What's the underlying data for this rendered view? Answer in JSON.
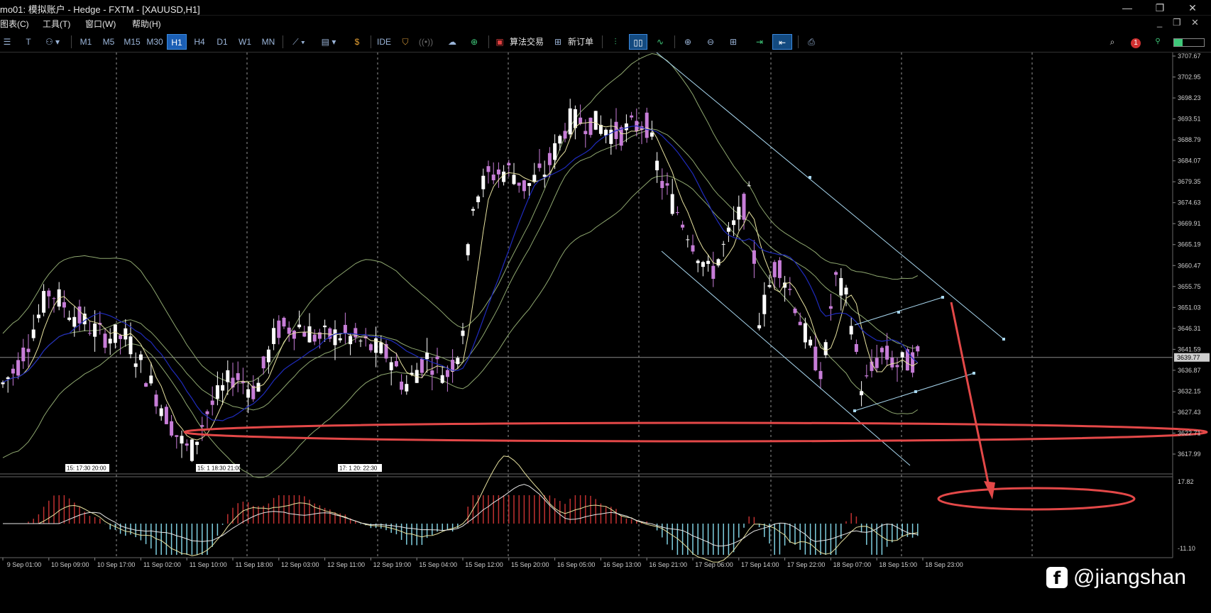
{
  "window": {
    "title": "mo01: 模拟账户 - Hedge - FXTM - [XAUUSD,H1]",
    "minimize": "—",
    "restore": "❐",
    "close": "✕"
  },
  "menu": {
    "items": [
      "图表(C)",
      "工具(T)",
      "窗口(W)",
      "帮助(H)"
    ],
    "mdi_minimize": "_",
    "mdi_restore": "❐",
    "mdi_close": "✕"
  },
  "toolbar": {
    "timeframes": [
      "M1",
      "M5",
      "M15",
      "M30",
      "H1",
      "H4",
      "D1",
      "W1",
      "MN"
    ],
    "active_timeframe": "H1",
    "ide_label": "IDE",
    "algo_trading_label": "算法交易",
    "new_order_label": "新订单",
    "alert_count": "1"
  },
  "chart": {
    "symbol": "XAUUSD",
    "period": "H1",
    "price_labels": [
      "3707.67",
      "3702.95",
      "3698.23",
      "3693.51",
      "3688.79",
      "3684.07",
      "3679.35",
      "3674.63",
      "3669.91",
      "3665.19",
      "3660.47",
      "3655.75",
      "3651.03",
      "3646.31",
      "3641.59",
      "3636.87",
      "3632.15",
      "3627.43",
      "3622.71",
      "3617.99"
    ],
    "current_price": "3639.77",
    "time_labels": [
      "9 Sep 01:00",
      "10 Sep 09:00",
      "10 Sep 17:00",
      "11 Sep 02:00",
      "11 Sep 10:00",
      "11 Sep 18:00",
      "12 Sep 03:00",
      "12 Sep 11:00",
      "12 Sep 19:00",
      "15 Sep 04:00",
      "15 Sep 12:00",
      "15 Sep 20:00",
      "16 Sep 05:00",
      "16 Sep 13:00",
      "16 Sep 21:00",
      "17 Sep 06:00",
      "17 Sep 14:00",
      "17 Sep 22:00",
      "18 Sep 07:00",
      "18 Sep 15:00",
      "18 Sep 23:00"
    ],
    "order_tags": [
      "15: 17:30 20:00",
      "15: 1 18:30 21:00",
      "17: 1 20: 22:30"
    ],
    "oscillator_labels": [
      "17.82",
      "-11.10"
    ],
    "colors": {
      "bull": "#ffffff",
      "bear": "#c77dd8",
      "ma_fast": "#e8e3a0",
      "ma_slow": "#1f2bbd",
      "bands": "#8fa870",
      "trend": "#a9d8f0",
      "annotation": "#e34848",
      "grid": "#bbbbbb"
    }
  },
  "watermark": {
    "icon": "facebook-icon",
    "handle": "@jiangshan"
  }
}
